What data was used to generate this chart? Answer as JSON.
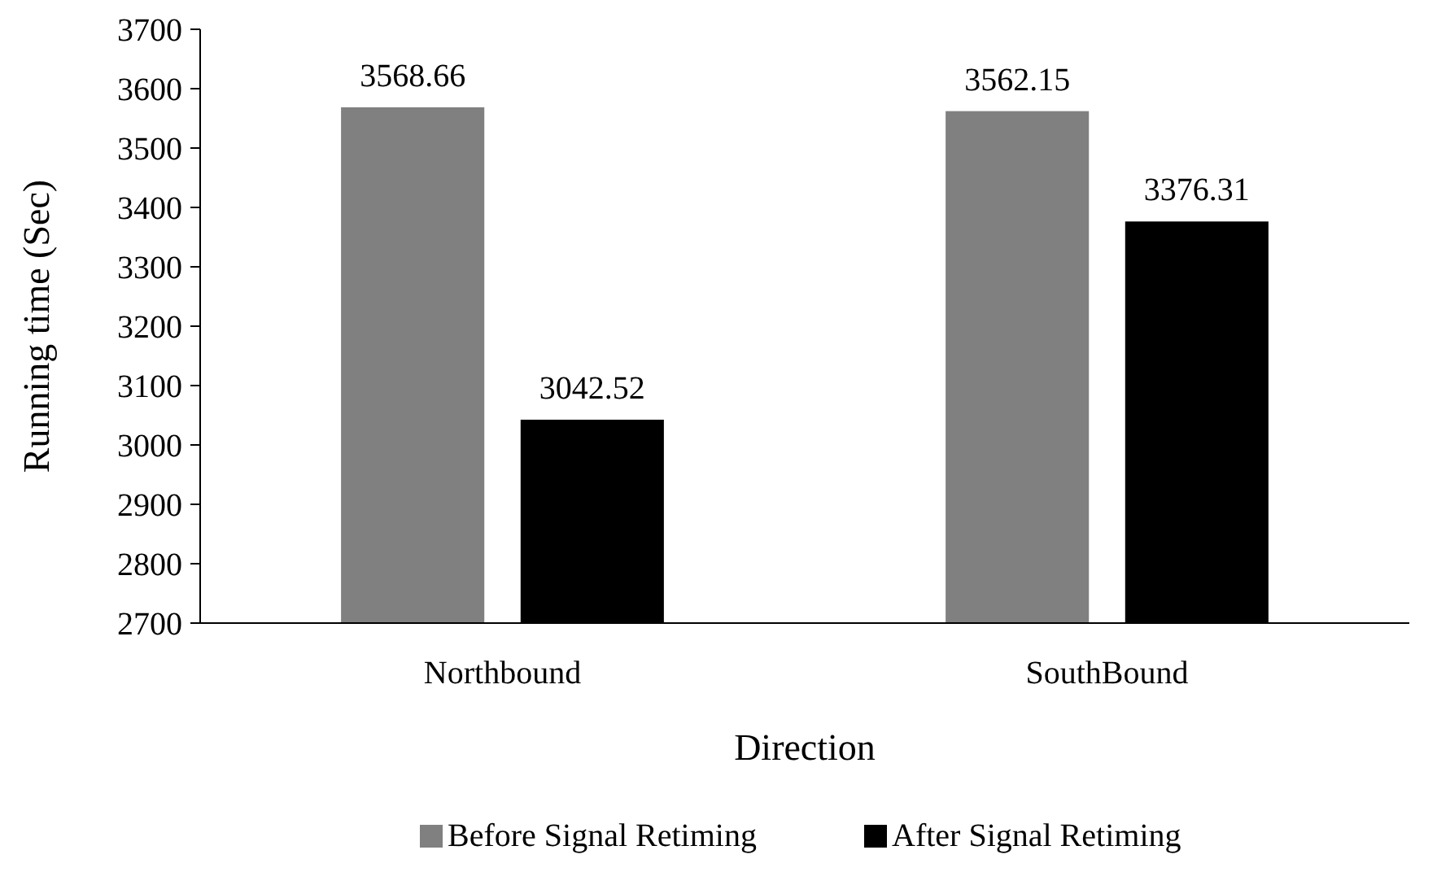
{
  "chart_data": {
    "type": "bar",
    "xlabel": "Direction",
    "ylabel": "Running time (Sec)",
    "categories": [
      "Northbound",
      "SouthBound"
    ],
    "series": [
      {
        "name": "Before Signal Retiming",
        "color": "#808080",
        "values": [
          3568.66,
          3562.15
        ]
      },
      {
        "name": "After Signal Retiming",
        "color": "#000000",
        "values": [
          3042.52,
          3376.31
        ]
      }
    ],
    "ylim": [
      2700,
      3700
    ],
    "yticks": [
      2700,
      2800,
      2900,
      3000,
      3100,
      3200,
      3300,
      3400,
      3500,
      3600,
      3700
    ],
    "data_labels": true,
    "grid": false,
    "legend": "bottom"
  }
}
